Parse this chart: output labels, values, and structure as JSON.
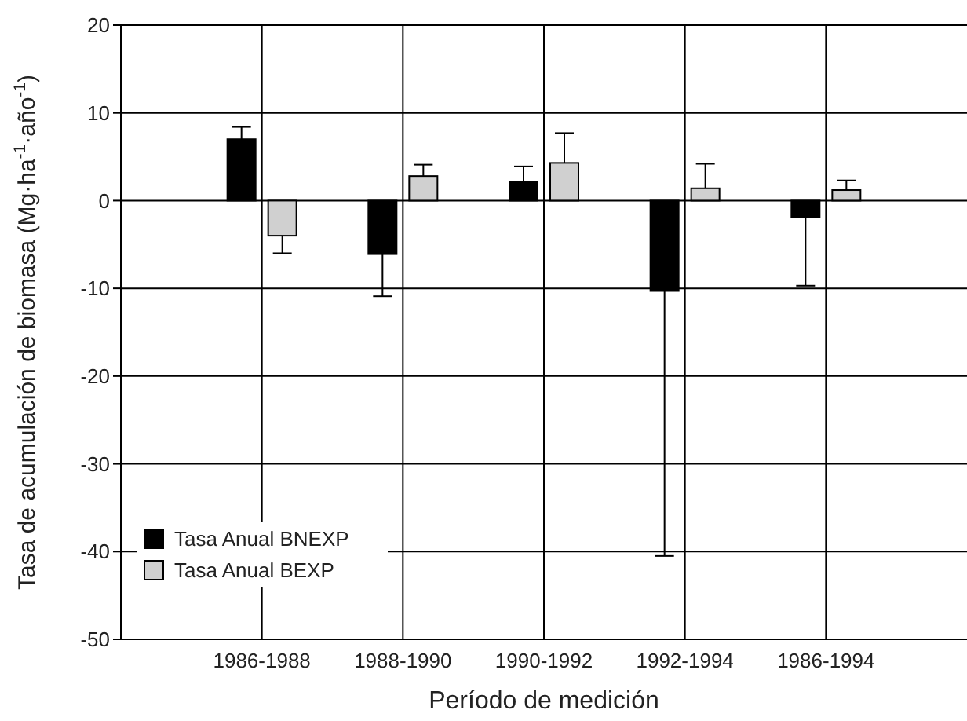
{
  "chart_data": {
    "type": "bar",
    "xlabel": "Período de medición",
    "ylabel": "Tasa de acumulación de biomasa (Mg·ha$^{-1}$·año$^{-1}$)",
    "categories": [
      "1986-1988",
      "1988-1990",
      "1990-1992",
      "1992-1994",
      "1986-1994"
    ],
    "series": [
      {
        "name": "Tasa Anual BNEXP",
        "color": "#000000",
        "values": [
          7,
          -6.1,
          2.1,
          -10.3,
          -1.9
        ],
        "errors": [
          [
            7,
            8.4
          ],
          [
            -10.9,
            -6.1
          ],
          [
            2.1,
            3.9
          ],
          [
            -40.5,
            -10.3
          ],
          [
            -9.7,
            -1.9
          ]
        ]
      },
      {
        "name": "Tasa Anual BEXP",
        "color": "#d0d0d0",
        "values": [
          -4,
          2.8,
          4.3,
          1.4,
          1.2
        ],
        "errors": [
          [
            -6,
            -4
          ],
          [
            2.8,
            4.1
          ],
          [
            4.3,
            7.7
          ],
          [
            1.4,
            4.2
          ],
          [
            1.2,
            2.3
          ]
        ]
      }
    ],
    "ylim": [
      -50,
      20
    ],
    "yticks": [
      -50,
      -40,
      -30,
      -20,
      -10,
      0,
      10,
      20
    ],
    "grid": true,
    "legend": "bottom left"
  }
}
